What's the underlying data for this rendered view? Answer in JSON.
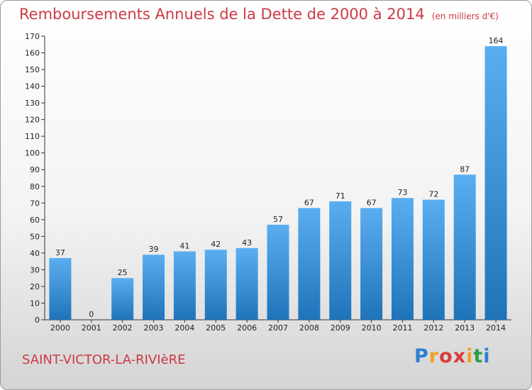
{
  "title": "Remboursements Annuels de la Dette de 2000 à 2014",
  "unit": "(en milliers d'€)",
  "city": "SAINT-VICTOR-LA-RIVIèRE",
  "logo": {
    "letters": [
      "P",
      "r",
      "o",
      "x",
      "i",
      "t",
      "i"
    ],
    "colors": [
      "#2e7fd1",
      "#f0a020",
      "#d83b3b",
      "#d83b3b",
      "#f0a020",
      "#2e9d48",
      "#2e7fd1"
    ]
  },
  "colors": {
    "bar_top": "#5aaef0",
    "bar_bottom": "#1f73b8",
    "title": "#cc3a44"
  },
  "chart_data": {
    "type": "bar",
    "categories": [
      "2000",
      "2001",
      "2002",
      "2003",
      "2004",
      "2005",
      "2006",
      "2007",
      "2008",
      "2009",
      "2010",
      "2011",
      "2012",
      "2013",
      "2014"
    ],
    "values": [
      37,
      0,
      25,
      39,
      41,
      42,
      43,
      57,
      67,
      71,
      67,
      73,
      72,
      87,
      164
    ],
    "ylim": [
      0,
      170
    ],
    "yticks": [
      0,
      10,
      20,
      30,
      40,
      50,
      60,
      70,
      80,
      90,
      100,
      110,
      120,
      130,
      140,
      150,
      160,
      170
    ],
    "grid": false
  }
}
